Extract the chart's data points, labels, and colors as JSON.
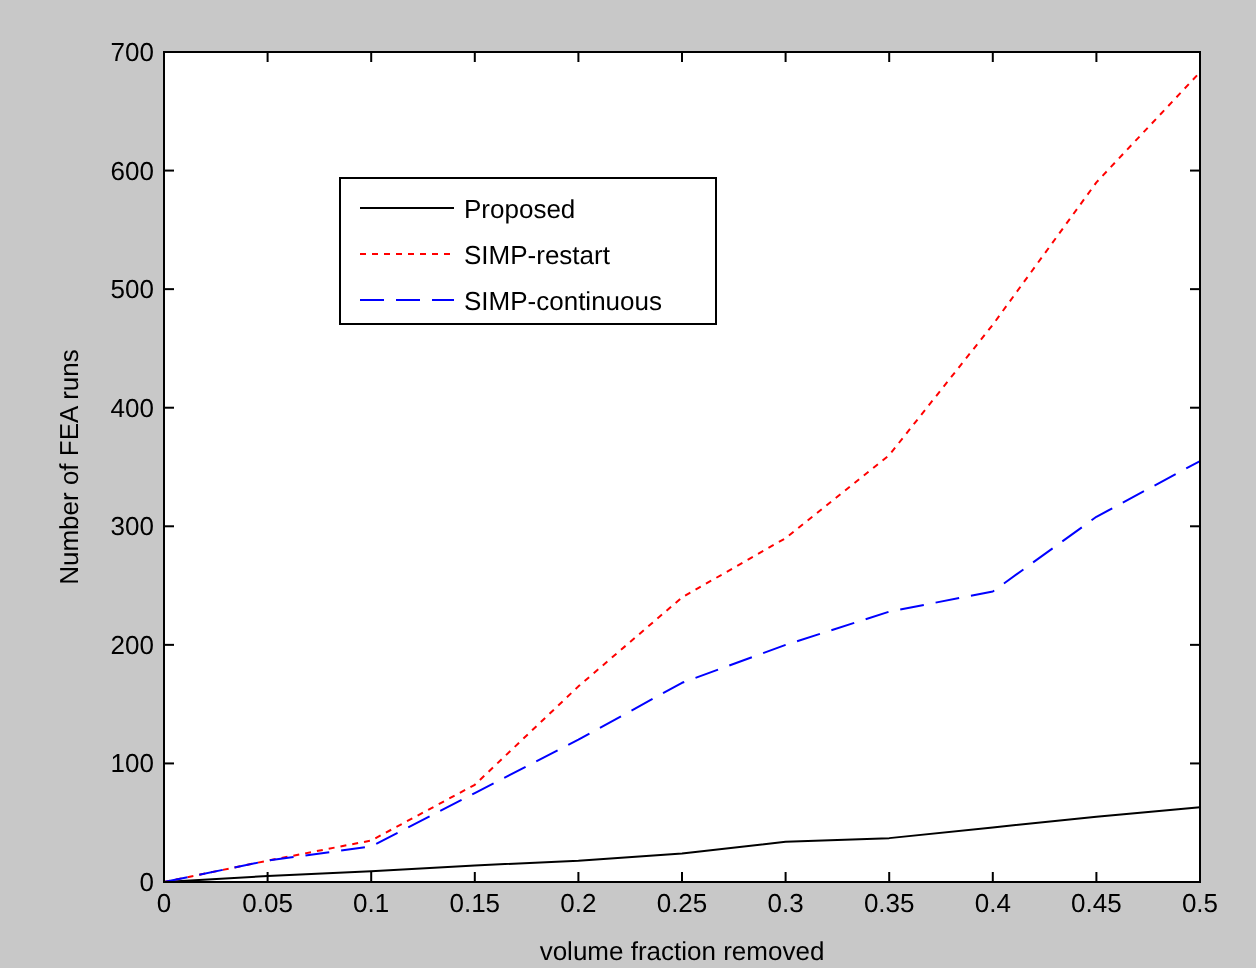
{
  "chart_data": {
    "type": "line",
    "xlabel": "volume fraction removed",
    "ylabel": "Number of FEA runs",
    "x": [
      0,
      0.05,
      0.1,
      0.15,
      0.2,
      0.25,
      0.3,
      0.35,
      0.4,
      0.45,
      0.5
    ],
    "xlim": [
      0,
      0.5
    ],
    "xticks": [
      0,
      0.05,
      0.1,
      0.15,
      0.2,
      0.25,
      0.3,
      0.35,
      0.4,
      0.45,
      0.5
    ],
    "ylim": [
      0,
      700
    ],
    "yticks": [
      0,
      100,
      200,
      300,
      400,
      500,
      600,
      700
    ],
    "grid": false,
    "legend": "top left",
    "series": [
      {
        "name": "Proposed",
        "color": "#000000",
        "line_style": "solid",
        "values": [
          0,
          5,
          9,
          14,
          18,
          24,
          34,
          37,
          46,
          55,
          63
        ]
      },
      {
        "name": "SIMP-restart",
        "color": "#ff0000",
        "line_style": "dotted",
        "values": [
          0,
          18,
          35,
          82,
          165,
          240,
          290,
          360,
          470,
          590,
          683
        ]
      },
      {
        "name": "SIMP-continuous",
        "color": "#0000ff",
        "line_style": "dashed",
        "values": [
          0,
          18,
          30,
          75,
          120,
          168,
          200,
          228,
          245,
          308,
          355
        ]
      }
    ]
  }
}
